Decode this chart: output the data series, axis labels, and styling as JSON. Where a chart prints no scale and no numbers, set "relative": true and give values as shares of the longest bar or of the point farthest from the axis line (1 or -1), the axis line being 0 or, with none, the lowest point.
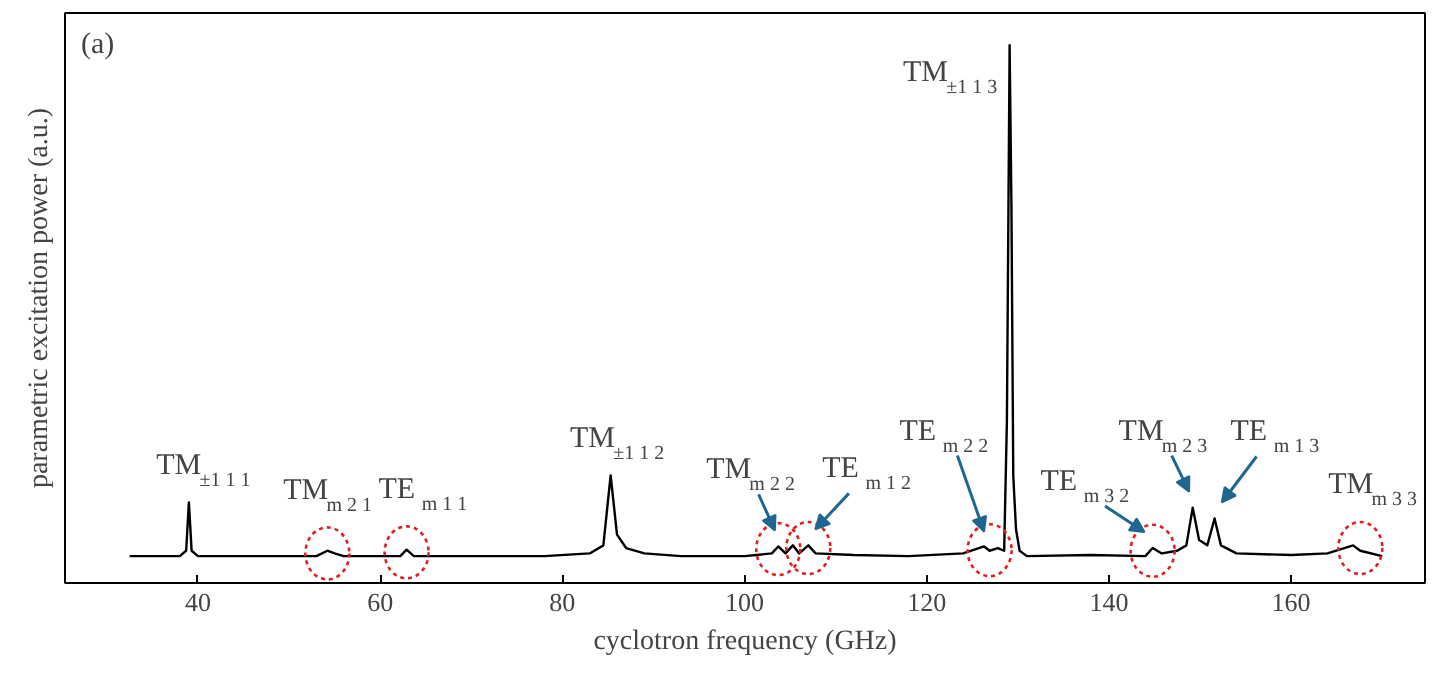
{
  "chart_data": {
    "type": "line",
    "relative": true,
    "xlabel": "cyclotron frequency (GHz)",
    "ylabel": "parametric excitation power (a.u.)",
    "xlim": [
      25.4,
      174.7
    ],
    "xticks": [
      40,
      60,
      80,
      100,
      120,
      140,
      160
    ],
    "grid": false,
    "marker": "none",
    "line_style": "solid",
    "series": [
      {
        "color": "#000000",
        "x": [
          32.5,
          38,
          38.7,
          39,
          39.3,
          40,
          46,
          53,
          54.2,
          55,
          56,
          62.2,
          62.9,
          63.7,
          70,
          78,
          83,
          84.5,
          85.3,
          86,
          87,
          89,
          93,
          100,
          103,
          103.7,
          104.5,
          105.3,
          106,
          107,
          107.8,
          112,
          118,
          124,
          126.3,
          126.9,
          127.8,
          128.5,
          128.8,
          129.1,
          129.3,
          129.5,
          129.8,
          130.2,
          131,
          138,
          144,
          144.8,
          145.8,
          147.5,
          148.5,
          149.2,
          149.9,
          150.8,
          151.6,
          152.3,
          154,
          160,
          164,
          166.8,
          167.6,
          170
        ],
        "values": [
          0.05,
          0.05,
          0.06,
          0.15,
          0.06,
          0.05,
          0.05,
          0.05,
          0.06,
          0.055,
          0.05,
          0.05,
          0.062,
          0.05,
          0.05,
          0.05,
          0.055,
          0.07,
          0.2,
          0.09,
          0.065,
          0.055,
          0.05,
          0.05,
          0.055,
          0.068,
          0.055,
          0.07,
          0.055,
          0.07,
          0.055,
          0.052,
          0.05,
          0.055,
          0.068,
          0.06,
          0.065,
          0.06,
          0.3,
          1.0,
          0.7,
          0.2,
          0.1,
          0.06,
          0.05,
          0.052,
          0.05,
          0.065,
          0.055,
          0.06,
          0.07,
          0.14,
          0.08,
          0.07,
          0.12,
          0.07,
          0.055,
          0.052,
          0.055,
          0.07,
          0.06,
          0.05
        ]
      }
    ],
    "annotations": [
      {
        "text": "TM$_{±1 1 1}$",
        "x": 39,
        "y": 0.15
      },
      {
        "text": "TM$_{m 2 1}$",
        "x": 54.2,
        "y": 0.06
      },
      {
        "text": "TE$_{m 1 1}$",
        "x": 62.9,
        "y": 0.062
      },
      {
        "text": "TM$_{±1 1 2}$",
        "x": 85.3,
        "y": 0.2
      },
      {
        "text": "TM$_{m 2 2}$",
        "x": 103.7,
        "y": 0.068
      },
      {
        "text": "TE$_{m 1 2}$",
        "x": 107,
        "y": 0.07
      },
      {
        "text": "TE$_{m 2 2}$",
        "x": 126.9,
        "y": 0.066
      },
      {
        "text": "TE$_{m 3 2}$",
        "x": 144.8,
        "y": 0.065
      },
      {
        "text": "TM$_{m 2 3}$",
        "x": 149.2,
        "y": 0.14
      },
      {
        "text": "TE$_{m 1 3}$",
        "x": 151.6,
        "y": 0.12
      },
      {
        "text": "TM$_{m 3 3}$",
        "x": 167.6,
        "y": 0.07
      },
      {
        "text": "TM$_{±1 1 3}$",
        "x": 129.1,
        "y": 1.0
      },
      "(a)"
    ]
  }
}
